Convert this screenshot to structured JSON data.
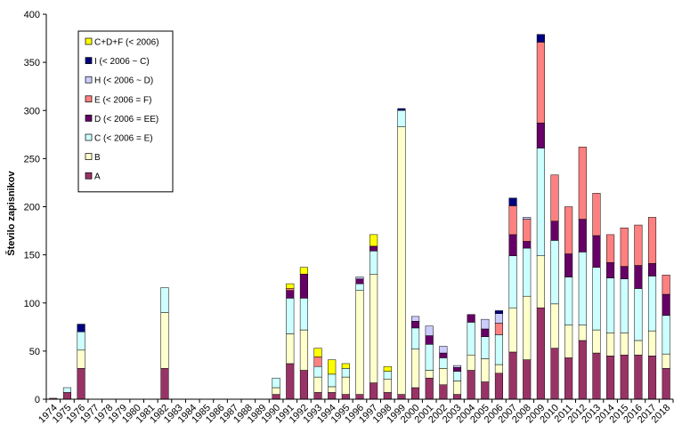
{
  "chart_data": {
    "type": "bar",
    "stacked": true,
    "title": "",
    "xlabel": "",
    "ylabel": "Število zapisnikov",
    "ylim": [
      0,
      400
    ],
    "yticks": [
      0,
      50,
      100,
      150,
      200,
      250,
      300,
      350,
      400
    ],
    "grid": false,
    "legend_position": "top-left",
    "categories": [
      "1974",
      "1975",
      "1976",
      "1977",
      "1978",
      "1979",
      "1980",
      "1981",
      "1982",
      "1983",
      "1984",
      "1985",
      "1986",
      "1987",
      "1988",
      "1989",
      "1990",
      "1991",
      "1992",
      "1993",
      "1994",
      "1995",
      "1996",
      "1997",
      "1998",
      "1999",
      "2000",
      "2001",
      "2002",
      "2003",
      "2004",
      "2005",
      "2006",
      "2007",
      "2008",
      "2009",
      "2010",
      "2011",
      "2012",
      "2013",
      "2014",
      "2015",
      "2016",
      "2017",
      "2018"
    ],
    "series": [
      {
        "name": "A",
        "color": "#993366",
        "values": [
          1,
          7,
          32,
          0,
          0,
          0,
          0,
          0,
          32,
          0,
          0,
          0,
          0,
          0,
          0,
          0,
          5,
          37,
          30,
          7,
          7,
          5,
          5,
          17,
          7,
          5,
          12,
          22,
          15,
          5,
          30,
          18,
          27,
          49,
          41,
          95,
          53,
          43,
          61,
          48,
          45,
          46,
          46,
          45,
          32
        ]
      },
      {
        "name": "B",
        "color": "#FFFFCC",
        "values": [
          0,
          0,
          19,
          0,
          0,
          0,
          0,
          0,
          58,
          0,
          0,
          0,
          0,
          0,
          0,
          0,
          7,
          31,
          42,
          16,
          6,
          18,
          108,
          113,
          14,
          278,
          40,
          8,
          17,
          14,
          16,
          24,
          9,
          46,
          66,
          54,
          46,
          34,
          16,
          24,
          24,
          23,
          15,
          26,
          15
        ]
      },
      {
        "name": "C (< 2006 = E)",
        "color": "#CCFFFF",
        "values": [
          0,
          5,
          19,
          0,
          0,
          0,
          0,
          0,
          26,
          0,
          0,
          0,
          0,
          0,
          0,
          0,
          10,
          37,
          33,
          11,
          13,
          9,
          7,
          24,
          8,
          17,
          22,
          27,
          11,
          10,
          34,
          23,
          31,
          54,
          50,
          112,
          66,
          50,
          76,
          65,
          57,
          56,
          54,
          57,
          40
        ]
      },
      {
        "name": "D (< 2006 = EE)",
        "color": "#660066",
        "values": [
          0,
          0,
          0,
          0,
          0,
          0,
          0,
          0,
          0,
          0,
          0,
          0,
          0,
          0,
          0,
          0,
          0,
          8,
          25,
          0,
          0,
          0,
          5,
          5,
          0,
          0,
          7,
          9,
          5,
          4,
          8,
          8,
          0,
          22,
          7,
          26,
          20,
          24,
          34,
          33,
          16,
          13,
          24,
          13,
          22
        ]
      },
      {
        "name": "E (< 2006 = F)",
        "color": "#FF8080",
        "values": [
          0,
          0,
          0,
          0,
          0,
          0,
          0,
          0,
          0,
          0,
          0,
          0,
          0,
          0,
          0,
          0,
          0,
          2,
          0,
          10,
          0,
          0,
          0,
          0,
          0,
          0,
          0,
          0,
          0,
          0,
          0,
          0,
          12,
          30,
          23,
          84,
          48,
          49,
          75,
          44,
          29,
          40,
          42,
          48,
          20
        ]
      },
      {
        "name": "H (< 2006 ~ D)",
        "color": "#CCCCFF",
        "values": [
          0,
          0,
          0,
          0,
          0,
          0,
          0,
          0,
          0,
          0,
          0,
          0,
          0,
          0,
          0,
          0,
          0,
          0,
          0,
          0,
          0,
          0,
          2,
          0,
          0,
          0,
          5,
          10,
          7,
          2,
          0,
          10,
          10,
          0,
          2,
          0,
          0,
          0,
          0,
          0,
          0,
          0,
          0,
          0,
          0
        ]
      },
      {
        "name": "I (< 2006 ~ C)",
        "color": "#000080",
        "values": [
          0,
          0,
          8,
          0,
          0,
          0,
          0,
          0,
          0,
          0,
          0,
          0,
          0,
          0,
          0,
          0,
          0,
          0,
          0,
          0,
          0,
          0,
          0,
          0,
          0,
          2,
          0,
          0,
          0,
          0,
          0,
          0,
          3,
          8,
          0,
          8,
          0,
          0,
          0,
          0,
          0,
          0,
          0,
          0,
          0
        ]
      },
      {
        "name": "C+D+F (< 2006)",
        "color": "#FFFF00",
        "values": [
          0,
          0,
          0,
          0,
          0,
          0,
          0,
          0,
          0,
          0,
          0,
          0,
          0,
          0,
          0,
          0,
          0,
          5,
          7,
          9,
          15,
          5,
          0,
          12,
          5,
          0,
          0,
          0,
          0,
          0,
          0,
          0,
          0,
          0,
          0,
          0,
          0,
          0,
          0,
          0,
          0,
          0,
          0,
          0,
          0
        ]
      }
    ],
    "legend_order": [
      "C+D+F (< 2006)",
      "I (< 2006 ~ C)",
      "H (< 2006 ~ D)",
      "E (< 2006 = F)",
      "D (< 2006 = EE)",
      "C (< 2006 = E)",
      "B",
      "A"
    ]
  }
}
